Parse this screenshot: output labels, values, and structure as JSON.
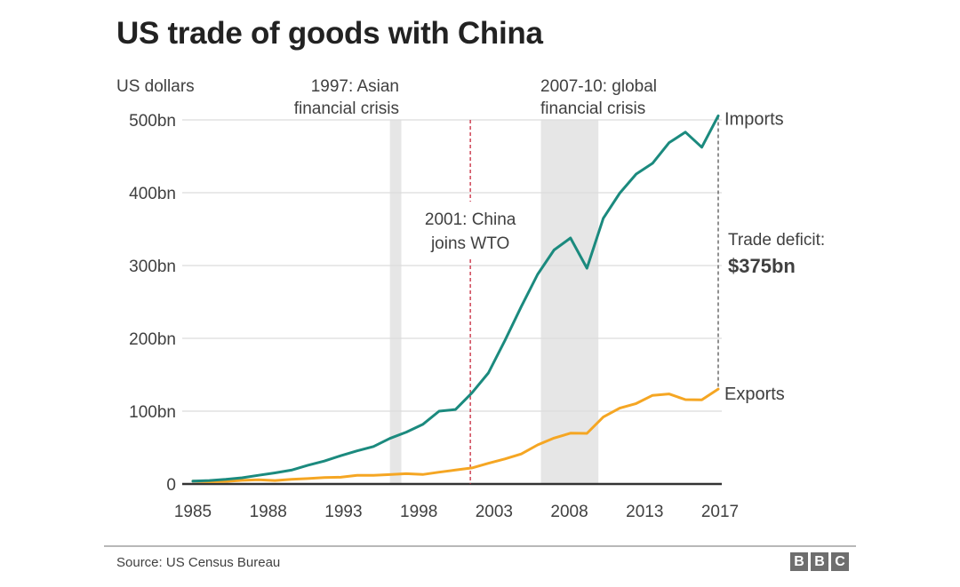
{
  "chart_data": {
    "type": "line",
    "title": "US trade of goods with China",
    "ylabel": "US dollars",
    "xlabel": "",
    "xlim": [
      1985,
      2017
    ],
    "ylim": [
      0,
      500
    ],
    "grid": true,
    "yticks": [
      {
        "value": 0,
        "label": "0"
      },
      {
        "value": 100,
        "label": "100bn"
      },
      {
        "value": 200,
        "label": "200bn"
      },
      {
        "value": 300,
        "label": "300bn"
      },
      {
        "value": 400,
        "label": "400bn"
      },
      {
        "value": 500,
        "label": "500bn"
      }
    ],
    "xticks": [
      "1985",
      "1988",
      "1993",
      "1998",
      "2003",
      "2008",
      "2013",
      "2017"
    ],
    "x": [
      1985,
      1986,
      1987,
      1988,
      1989,
      1990,
      1991,
      1992,
      1993,
      1994,
      1995,
      1996,
      1997,
      1998,
      1999,
      2000,
      2001,
      2002,
      2003,
      2004,
      2005,
      2006,
      2007,
      2008,
      2009,
      2010,
      2011,
      2012,
      2013,
      2014,
      2015,
      2016,
      2017
    ],
    "series": [
      {
        "name": "Imports",
        "color": "#1b8a7e",
        "values": [
          3.9,
          4.8,
          6.3,
          8.5,
          12.0,
          15.2,
          19.0,
          25.7,
          31.5,
          38.8,
          45.5,
          51.5,
          62.6,
          71.2,
          81.8,
          100.0,
          102.3,
          125.2,
          152.4,
          196.7,
          243.5,
          287.8,
          321.4,
          337.8,
          296.4,
          364.9,
          399.4,
          425.6,
          440.4,
          468.5,
          483.2,
          462.4,
          505.5
        ]
      },
      {
        "name": "Exports",
        "color": "#f5a623",
        "values": [
          3.9,
          3.1,
          3.5,
          5.0,
          5.8,
          4.8,
          6.3,
          7.4,
          8.8,
          9.3,
          11.8,
          12.0,
          12.9,
          14.2,
          13.1,
          16.2,
          19.2,
          22.1,
          28.4,
          34.4,
          41.2,
          53.7,
          63.0,
          69.7,
          69.5,
          91.9,
          104.1,
          110.5,
          121.7,
          123.7,
          115.9,
          115.6,
          130.4
        ]
      }
    ],
    "annotations": {
      "asian_crisis": {
        "line1": "1997: Asian",
        "line2": "financial crisis",
        "start": 1997.0,
        "end": 1997.7
      },
      "wto": {
        "line1": "2001: China",
        "line2": "joins WTO",
        "year": 2001.9
      },
      "gfc": {
        "line1": "2007-10: global",
        "line2": "financial crisis",
        "start": 2006.2,
        "end": 2009.7
      },
      "deficit": {
        "label": "Trade deficit:",
        "value": "$375bn"
      }
    },
    "legend": "inline-right"
  },
  "footer": {
    "source": "Source: US Census Bureau",
    "logo_letters": [
      "B",
      "B",
      "C"
    ]
  }
}
